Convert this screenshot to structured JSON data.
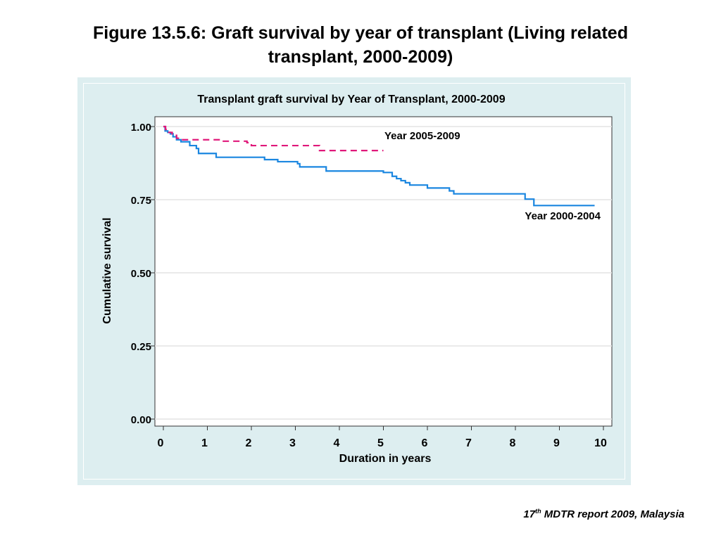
{
  "slide": {
    "title_line1": "Figure 13.5.6:   Graft survival by year of transplant (Living related",
    "title_line2": "transplant, 2000-2009)",
    "footer_ordinal": "17",
    "footer_sup": "th",
    "footer_rest": " MDTR report 2009, Malaysia"
  },
  "colors": {
    "panel_bg": "#ddeef0",
    "series_2000_2004": "#1a86e0",
    "series_2005_2009": "#e0187a",
    "grid": "#e4e4e4"
  },
  "chart_data": {
    "type": "line",
    "step": true,
    "title": "Transplant graft survival by Year of Transplant, 2000-2009",
    "xlabel": "Duration in years",
    "ylabel": "Cumulative survival",
    "xlim": [
      0,
      10
    ],
    "ylim": [
      0,
      1
    ],
    "xticks": [
      "0",
      "1",
      "2",
      "3",
      "4",
      "5",
      "6",
      "7",
      "8",
      "9",
      "10"
    ],
    "yticks": [
      "0.00",
      "0.25",
      "0.50",
      "0.75",
      "1.00"
    ],
    "grid": true,
    "series": [
      {
        "name": "Year 2000-2004",
        "style": "solid",
        "x": [
          0,
          0.04,
          0.1,
          0.16,
          0.22,
          0.3,
          0.4,
          0.6,
          0.75,
          0.8,
          1.2,
          1.8,
          2.3,
          2.6,
          3.05,
          3.1,
          3.7,
          4.0,
          5.0,
          5.2,
          5.3,
          5.4,
          5.5,
          5.6,
          5.8,
          6.0,
          6.2,
          6.5,
          6.6,
          7.0,
          8.0,
          8.22,
          8.3,
          8.42,
          9.0,
          9.8
        ],
        "y": [
          1.0,
          0.985,
          0.98,
          0.975,
          0.965,
          0.955,
          0.948,
          0.935,
          0.925,
          0.908,
          0.895,
          0.895,
          0.887,
          0.88,
          0.873,
          0.862,
          0.848,
          0.848,
          0.843,
          0.83,
          0.822,
          0.815,
          0.808,
          0.8,
          0.8,
          0.79,
          0.79,
          0.78,
          0.77,
          0.77,
          0.77,
          0.752,
          0.752,
          0.73,
          0.73,
          0.73
        ]
      },
      {
        "name": "Year 2005-2009",
        "style": "dashed",
        "x": [
          0,
          0.05,
          0.1,
          0.2,
          0.3,
          0.4,
          0.8,
          1.3,
          1.9,
          2.0,
          3.0,
          3.5,
          3.55,
          4.0,
          5.0
        ],
        "y": [
          1.0,
          0.99,
          0.98,
          0.97,
          0.96,
          0.955,
          0.955,
          0.95,
          0.945,
          0.935,
          0.935,
          0.935,
          0.918,
          0.918,
          0.918
        ]
      }
    ]
  }
}
